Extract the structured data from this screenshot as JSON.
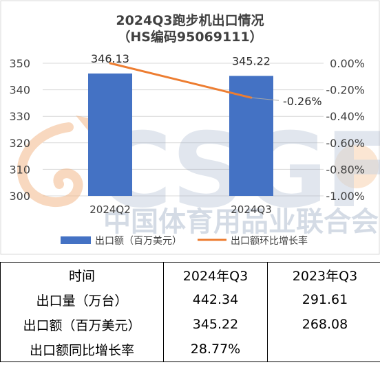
{
  "chart_data": {
    "type": "bar+line",
    "title": "2024Q3跑步机出口情况",
    "subtitle": "（HS编码95069111）",
    "categories": [
      "2024Q2",
      "2024Q3"
    ],
    "series": [
      {
        "name": "出口额（百万美元）",
        "type": "bar",
        "axis": "left",
        "values": [
          346.13,
          345.22
        ],
        "data_labels": [
          "346.13",
          "345.22"
        ],
        "color": "#4472c4"
      },
      {
        "name": "出口额环比增长率",
        "type": "line",
        "axis": "right",
        "values": [
          0.0,
          -0.26
        ],
        "data_labels": [
          "",
          "-0.26%"
        ],
        "color": "#ed7d31"
      }
    ],
    "y_left": {
      "min": 300,
      "max": 350,
      "ticks": [
        "350",
        "340",
        "330",
        "320",
        "310",
        "300"
      ]
    },
    "y_right": {
      "min": -1.0,
      "max": 0.0,
      "ticks": [
        "0.00%",
        "-0.20%",
        "-0.40%",
        "-0.60%",
        "-0.80%",
        "-1.00%"
      ]
    },
    "legend_position": "bottom",
    "grid": true
  },
  "watermark": {
    "text": "中国体育用品业联合会",
    "logo": "CSGF"
  },
  "table": {
    "headers": [
      "时间",
      "2024年Q3",
      "2023年Q3"
    ],
    "rows": [
      [
        "出口量（万台）",
        "442.34",
        "291.61"
      ],
      [
        "出口额（百万美元）",
        "345.22",
        "268.08"
      ],
      [
        "出口额同比增长率",
        "28.77%",
        ""
      ]
    ]
  }
}
